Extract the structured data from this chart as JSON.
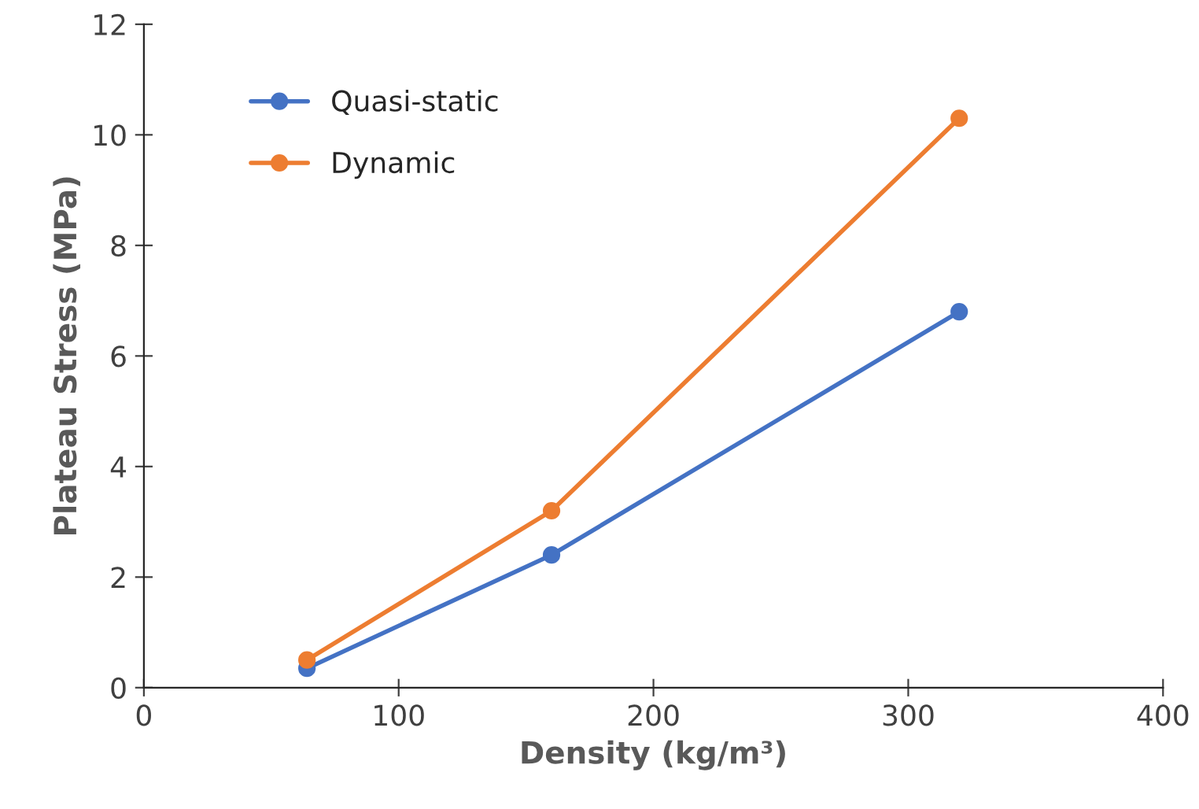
{
  "chart_data": {
    "type": "line",
    "xlabel": "Density (kg/m³)",
    "ylabel": "Plateau Stress (MPa)",
    "series": [
      {
        "name": "Quasi-static",
        "color": "#4472c4",
        "x": [
          64,
          160,
          320
        ],
        "values": [
          0.35,
          2.4,
          6.8
        ]
      },
      {
        "name": "Dynamic",
        "color": "#ed7d31",
        "x": [
          64,
          160,
          320
        ],
        "values": [
          0.5,
          3.2,
          10.3
        ]
      }
    ],
    "xlim": [
      0,
      400
    ],
    "xticks": [
      0,
      100,
      200,
      300,
      400
    ],
    "ylim": [
      0,
      12
    ],
    "yticks": [
      0,
      2,
      4,
      6,
      8,
      10,
      12
    ],
    "marker": "circle",
    "line_style": "solid",
    "legend": "top left",
    "grid": false
  }
}
